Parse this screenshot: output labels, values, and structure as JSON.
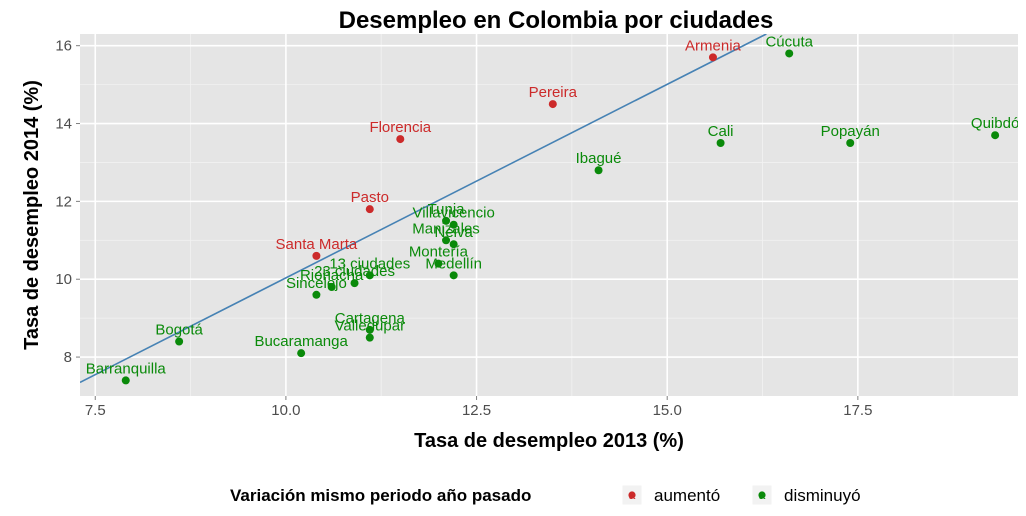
{
  "chart_data": {
    "type": "scatter",
    "title": "Desempleo en Colombia por ciudades",
    "xlabel": "Tasa de desempleo 2013 (%)",
    "ylabel": "Tasa de desempleo 2014 (%)",
    "xlim": [
      7.3,
      19.6
    ],
    "ylim": [
      7.0,
      16.3
    ],
    "xticks": [
      7.5,
      10.0,
      12.5,
      15.0,
      17.5
    ],
    "xtick_labels": [
      "7.5",
      "10.0",
      "12.5",
      "15.0",
      "17.5"
    ],
    "yticks": [
      8,
      10,
      12,
      14,
      16
    ],
    "ytick_labels": [
      "8",
      "10",
      "12",
      "14",
      "16"
    ],
    "grid": true,
    "legend": {
      "title": "Variación mismo periodo año pasado",
      "placement": "bottom",
      "entries": [
        {
          "key": "aumento",
          "label": "aumentó",
          "color": "#cc2a2a"
        },
        {
          "key": "disminuyo",
          "label": "disminuyó",
          "color": "#0a8a0a"
        }
      ]
    },
    "trend_line": {
      "color": "#4682b4",
      "x": [
        7.3,
        16.3
      ],
      "y": [
        7.35,
        16.3
      ]
    },
    "points": [
      {
        "label": "Armenia",
        "x": 15.6,
        "y": 15.7,
        "group": "aumento"
      },
      {
        "label": "Pereira",
        "x": 13.5,
        "y": 14.5,
        "group": "aumento"
      },
      {
        "label": "Florencia",
        "x": 11.5,
        "y": 13.6,
        "group": "aumento"
      },
      {
        "label": "Pasto",
        "x": 11.1,
        "y": 11.8,
        "group": "aumento"
      },
      {
        "label": "Santa Marta",
        "x": 10.4,
        "y": 10.6,
        "group": "aumento"
      },
      {
        "label": "Cúcuta",
        "x": 16.6,
        "y": 15.8,
        "group": "disminuyo"
      },
      {
        "label": "Quibdó",
        "x": 19.3,
        "y": 13.7,
        "group": "disminuyo"
      },
      {
        "label": "Cali",
        "x": 15.7,
        "y": 13.5,
        "group": "disminuyo"
      },
      {
        "label": "Popayán",
        "x": 17.4,
        "y": 13.5,
        "group": "disminuyo"
      },
      {
        "label": "Ibagué",
        "x": 14.1,
        "y": 12.8,
        "group": "disminuyo"
      },
      {
        "label": "Tunja",
        "x": 12.1,
        "y": 11.5,
        "group": "disminuyo"
      },
      {
        "label": "Villavicencio",
        "x": 12.2,
        "y": 11.4,
        "group": "disminuyo"
      },
      {
        "label": "Neiva",
        "x": 12.2,
        "y": 10.9,
        "group": "disminuyo"
      },
      {
        "label": "Manizales",
        "x": 12.1,
        "y": 11.0,
        "group": "disminuyo"
      },
      {
        "label": "Montería",
        "x": 12.0,
        "y": 10.4,
        "group": "disminuyo"
      },
      {
        "label": "Medellín",
        "x": 12.2,
        "y": 10.1,
        "group": "disminuyo"
      },
      {
        "label": "23 ciudades",
        "x": 10.9,
        "y": 9.9,
        "group": "disminuyo"
      },
      {
        "label": "13 ciudades",
        "x": 11.1,
        "y": 10.1,
        "group": "disminuyo"
      },
      {
        "label": "Riohacha",
        "x": 10.6,
        "y": 9.8,
        "group": "disminuyo"
      },
      {
        "label": "Sincelejo",
        "x": 10.4,
        "y": 9.6,
        "group": "disminuyo"
      },
      {
        "label": "Cartagena",
        "x": 11.1,
        "y": 8.7,
        "group": "disminuyo"
      },
      {
        "label": "Valledupar",
        "x": 11.1,
        "y": 8.5,
        "group": "disminuyo"
      },
      {
        "label": "Bogotá",
        "x": 8.6,
        "y": 8.4,
        "group": "disminuyo"
      },
      {
        "label": "Bucaramanga",
        "x": 10.2,
        "y": 8.1,
        "group": "disminuyo"
      },
      {
        "label": "Barranquilla",
        "x": 7.9,
        "y": 7.4,
        "group": "disminuyo"
      }
    ]
  }
}
